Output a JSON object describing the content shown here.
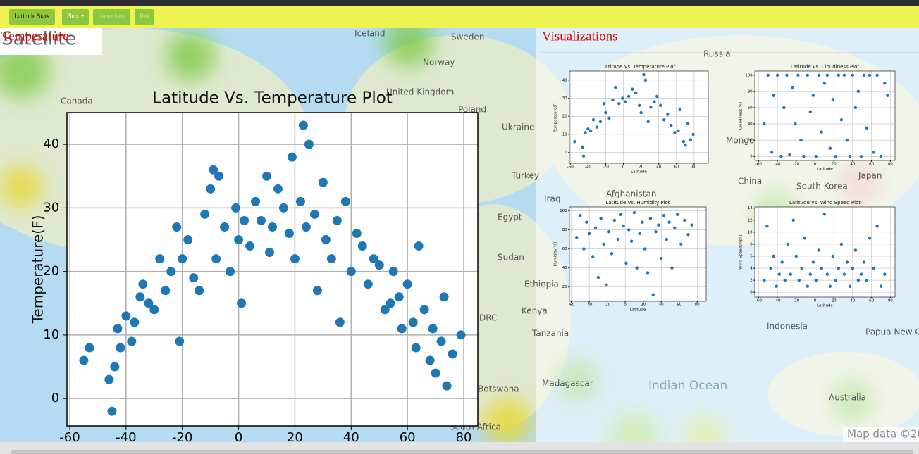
{
  "nav": {
    "items": [
      "Latitude Stats",
      "Plots",
      "Comparisons",
      "Data"
    ]
  },
  "left_heading": "Temperature",
  "map_type": "Satellite",
  "right_heading": "Visualizations",
  "map": {
    "labels": [
      "Iceland",
      "Sweden",
      "Norway",
      "Canada",
      "United Kingdom",
      "Poland",
      "Ukraine",
      "Turkey",
      "Egypt",
      "Sudan",
      "Ethiopia",
      "Kenya",
      "Tanzania",
      "DRC",
      "Botswana",
      "South Africa",
      "Russia",
      "Mongolia",
      "China",
      "South Korea",
      "Japan",
      "Afghanistan",
      "Iraq",
      "Indonesia",
      "Papua New Guinea",
      "Madagascar",
      "Indian Ocean",
      "Australia",
      "Map data ©20"
    ]
  },
  "chart_data": [
    {
      "type": "scatter",
      "title": "Latitude Vs. Temperature Plot",
      "y_label": "Temperature(F)",
      "x": [
        -55,
        -53,
        -46,
        -45,
        -44,
        -43,
        -42,
        -40,
        -38,
        -37,
        -35,
        -34,
        -32,
        -30,
        -28,
        -26,
        -24,
        -22,
        -21,
        -20,
        -18,
        -16,
        -14,
        -12,
        -10,
        -9,
        -8,
        -7,
        -5,
        -3,
        -1,
        0,
        1,
        2,
        4,
        6,
        8,
        10,
        11,
        12,
        14,
        16,
        18,
        19,
        20,
        22,
        23,
        24,
        25,
        27,
        28,
        30,
        31,
        33,
        35,
        36,
        38,
        40,
        42,
        44,
        46,
        48,
        50,
        52,
        54,
        55,
        57,
        58,
        60,
        62,
        63,
        64,
        66,
        68,
        69,
        70,
        72,
        73,
        74,
        76,
        79
      ],
      "series": [
        {
          "color": "#1f77b4",
          "values": [
            6,
            8,
            3,
            -2,
            5,
            11,
            8,
            13,
            9,
            12,
            16,
            18,
            15,
            14,
            22,
            17,
            20,
            27,
            9,
            22,
            25,
            19,
            17,
            29,
            33,
            36,
            22,
            35,
            27,
            20,
            30,
            25,
            15,
            28,
            24,
            31,
            28,
            35,
            23,
            27,
            33,
            30,
            26,
            38,
            22,
            31,
            43,
            27,
            40,
            29,
            17,
            34,
            25,
            22,
            28,
            12,
            31,
            20,
            26,
            24,
            18,
            22,
            21,
            14,
            15,
            20,
            16,
            11,
            18,
            12,
            8,
            24,
            14,
            6,
            11,
            4,
            9,
            16,
            2,
            7,
            10
          ]
        }
      ],
      "xlim": [
        -61,
        85
      ],
      "ylim": [
        -4.3,
        45
      ],
      "xticks": [
        -60,
        -40,
        -20,
        0,
        20,
        40,
        60,
        80
      ],
      "yticks": [
        0,
        10,
        20,
        30,
        40
      ],
      "grid": true
    },
    {
      "type": "scatter",
      "title": "Latitude Vs. Temperature Plot",
      "x_label": "Latitude",
      "y_label": "Temperature(F)",
      "x": [
        -55,
        -46,
        -45,
        -43,
        -40,
        -37,
        -34,
        -30,
        -26,
        -22,
        -20,
        -16,
        -12,
        -9,
        -5,
        -1,
        2,
        6,
        10,
        14,
        18,
        20,
        23,
        25,
        28,
        31,
        35,
        38,
        42,
        46,
        50,
        54,
        58,
        62,
        64,
        68,
        70,
        73,
        76,
        79
      ],
      "series": [
        {
          "color": "#1f77b4",
          "values": [
            6,
            3,
            -2,
            11,
            13,
            12,
            18,
            14,
            17,
            27,
            22,
            19,
            29,
            36,
            27,
            30,
            28,
            31,
            35,
            33,
            26,
            22,
            43,
            40,
            17,
            25,
            28,
            31,
            26,
            18,
            21,
            15,
            11,
            12,
            24,
            6,
            4,
            16,
            7,
            10
          ]
        }
      ],
      "xlim": [
        -61,
        96
      ],
      "ylim": [
        -6,
        45
      ],
      "xticks": [
        -60,
        -40,
        -20,
        0,
        20,
        40,
        60,
        80
      ],
      "yticks": [
        0,
        10,
        20,
        30,
        40
      ],
      "grid": true
    },
    {
      "type": "scatter",
      "title": "Latitude Vs. Cloudiness Plot",
      "x_label": "Latitude",
      "y_label": "Cloudiness(%)",
      "x": [
        -54,
        -50,
        -46,
        -44,
        -40,
        -36,
        -33,
        -30,
        -27,
        -24,
        -21,
        -18,
        -15,
        -12,
        -8,
        -5,
        -2,
        1,
        4,
        7,
        10,
        13,
        16,
        19,
        22,
        25,
        28,
        31,
        34,
        37,
        40,
        43,
        46,
        49,
        52,
        55,
        58,
        62,
        66,
        70,
        74,
        77
      ],
      "series": [
        {
          "color": "#1f77b4",
          "values": [
            40,
            100,
            5,
            75,
            100,
            0,
            60,
            100,
            2,
            85,
            40,
            100,
            20,
            0,
            100,
            55,
            75,
            0,
            100,
            30,
            90,
            100,
            10,
            70,
            0,
            100,
            45,
            100,
            20,
            0,
            100,
            60,
            80,
            0,
            100,
            35,
            100,
            5,
            100,
            0,
            90,
            75
          ]
        }
      ],
      "xlim": [
        -64,
        85
      ],
      "ylim": [
        -5,
        105
      ],
      "xticks": [
        -60,
        -40,
        -20,
        0,
        20,
        40,
        60,
        80
      ],
      "yticks": [
        0,
        20,
        40,
        60,
        80,
        100
      ],
      "grid": true
    },
    {
      "type": "scatter",
      "title": "Latitude Vs. Humidity Plot",
      "x_label": "Latitude",
      "y_label": "Humidity(%)",
      "x": [
        -54,
        -50,
        -46,
        -43,
        -40,
        -36,
        -33,
        -30,
        -27,
        -24,
        -21,
        -18,
        -15,
        -12,
        -8,
        -5,
        -2,
        1,
        4,
        7,
        10,
        13,
        16,
        19,
        22,
        25,
        28,
        31,
        34,
        37,
        40,
        43,
        46,
        49,
        52,
        55,
        58,
        62,
        66,
        70,
        74
      ],
      "series": [
        {
          "color": "#1f77b4",
          "values": [
            72,
            95,
            60,
            88,
            76,
            52,
            82,
            30,
            92,
            65,
            22,
            78,
            55,
            90,
            70,
            96,
            84,
            45,
            80,
            68,
            98,
            40,
            76,
            88,
            60,
            35,
            92,
            12,
            78,
            85,
            50,
            95,
            70,
            88,
            40,
            82,
            96,
            65,
            90,
            75,
            85
          ]
        }
      ],
      "xlim": [
        -62,
        90
      ],
      "ylim": [
        5,
        104
      ],
      "xticks": [
        -60,
        -40,
        -20,
        0,
        20,
        40,
        60,
        80
      ],
      "yticks": [
        20,
        40,
        60,
        80,
        100
      ],
      "grid": true
    },
    {
      "type": "scatter",
      "title": "Latitude Vs. Wind Speed Plot",
      "x_label": "Latitude",
      "y_label": "Wind Speed(mph)",
      "x": [
        -54,
        -51,
        -47,
        -44,
        -41,
        -38,
        -35,
        -32,
        -29,
        -26,
        -23,
        -20,
        -17,
        -14,
        -11,
        -8,
        -5,
        -2,
        1,
        4,
        7,
        10,
        13,
        16,
        19,
        22,
        25,
        28,
        31,
        34,
        37,
        40,
        43,
        46,
        49,
        52,
        55,
        58,
        62,
        66,
        70,
        74
      ],
      "series": [
        {
          "color": "#1f77b4",
          "values": [
            2,
            11,
            4,
            6,
            1,
            3,
            5,
            2,
            8,
            3,
            12,
            6,
            2,
            4,
            9,
            1,
            3,
            5,
            2,
            7,
            4,
            13,
            3,
            1,
            6,
            2,
            4,
            8,
            3,
            5,
            1,
            4,
            7,
            2,
            3,
            5,
            2,
            9,
            4,
            11,
            1,
            3
          ]
        }
      ],
      "xlim": [
        -64,
        85
      ],
      "ylim": [
        -0.8,
        14.2
      ],
      "xticks": [
        -60,
        -40,
        -20,
        0,
        20,
        40,
        60,
        80
      ],
      "yticks": [
        0,
        2,
        4,
        6,
        8,
        10,
        12,
        14
      ],
      "grid": true
    }
  ]
}
